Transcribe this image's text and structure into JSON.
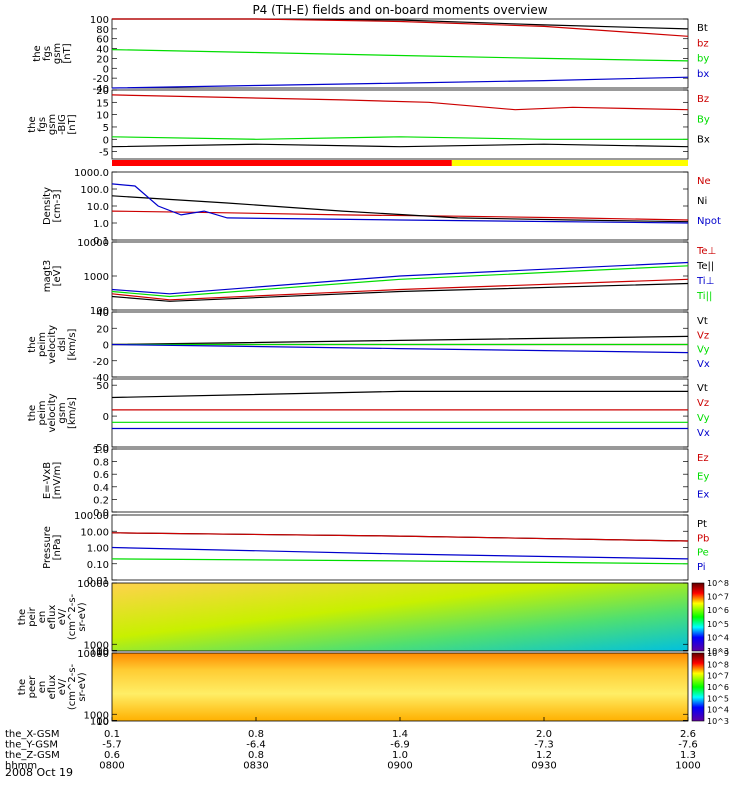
{
  "title": "P4 (TH-E) fields and on-board moments overview",
  "date": "2008 Oct 19",
  "x_axis": {
    "rows": [
      {
        "label": "the_X-GSM",
        "values": [
          "0.1",
          "0.8",
          "1.4",
          "2.0",
          "2.6"
        ]
      },
      {
        "label": "the_Y-GSM",
        "values": [
          "-5.7",
          "-6.4",
          "-6.9",
          "-7.3",
          "-7.6"
        ]
      },
      {
        "label": "the_Z-GSM",
        "values": [
          "0.6",
          "0.8",
          "1.0",
          "1.2",
          "1.3"
        ]
      },
      {
        "label": "hhmm",
        "values": [
          "0800",
          "0830",
          "0900",
          "0930",
          "1000"
        ]
      }
    ]
  },
  "colors": {
    "black": "#000000",
    "red": "#cc0000",
    "green": "#00dd00",
    "blue": "#0000cc",
    "yellow": "#ffff00"
  },
  "chart_data": [
    {
      "id": "fgs",
      "type": "line",
      "ylabel": [
        "the",
        "fgs",
        "gsm",
        "[nT]"
      ],
      "ylim": [
        -40,
        100
      ],
      "yticks": [
        "-40",
        "-20",
        "0",
        "20",
        "40",
        "60",
        "80",
        "100"
      ],
      "ytick_values": [
        -40,
        -20,
        0,
        20,
        40,
        60,
        80,
        100
      ],
      "series": [
        {
          "name": "Bt",
          "color": "#000000",
          "x": [
            0,
            0.25,
            0.5,
            0.75,
            1
          ],
          "y": [
            120,
            108,
            98,
            88,
            80
          ]
        },
        {
          "name": "bz",
          "color": "#cc0000",
          "x": [
            0,
            0.25,
            0.5,
            0.75,
            1
          ],
          "y": [
            115,
            105,
            95,
            85,
            65
          ]
        },
        {
          "name": "by",
          "color": "#00dd00",
          "x": [
            0,
            0.25,
            0.5,
            0.75,
            1
          ],
          "y": [
            38,
            32,
            26,
            20,
            15
          ]
        },
        {
          "name": "bx",
          "color": "#0000cc",
          "x": [
            0,
            0.25,
            0.5,
            0.75,
            1
          ],
          "y": [
            -40,
            -35,
            -30,
            -25,
            -18
          ]
        }
      ]
    },
    {
      "id": "fgs-dsl",
      "type": "line",
      "ylabel": [
        "the",
        "fgs",
        "gsm",
        "-BIG",
        "[nT]"
      ],
      "ylim": [
        -8,
        20
      ],
      "yticks": [
        "-5",
        "0",
        "5",
        "10",
        "15",
        "20"
      ],
      "ytick_values": [
        -5,
        0,
        5,
        10,
        15,
        20
      ],
      "series": [
        {
          "name": "Bz",
          "color": "#cc0000",
          "x": [
            0,
            0.2,
            0.4,
            0.55,
            0.7,
            0.8,
            1
          ],
          "y": [
            18,
            17,
            16,
            15,
            12,
            13,
            12
          ]
        },
        {
          "name": "By",
          "color": "#00dd00",
          "x": [
            0,
            0.25,
            0.5,
            0.75,
            1
          ],
          "y": [
            1,
            0,
            1,
            0,
            0
          ]
        },
        {
          "name": "Bx",
          "color": "#000000",
          "x": [
            0,
            0.25,
            0.5,
            0.75,
            1
          ],
          "y": [
            -3,
            -2,
            -3,
            -2,
            -3
          ]
        }
      ]
    },
    {
      "id": "density",
      "type": "line",
      "log": true,
      "ylabel": [
        "Density",
        "[cm-3]"
      ],
      "ylim": [
        0.1,
        1000
      ],
      "yticks": [
        "0.1",
        "1.0",
        "10.0",
        "100.0",
        "1000.0"
      ],
      "ytick_values": [
        0.1,
        1,
        10,
        100,
        1000
      ],
      "series": [
        {
          "name": "Ne",
          "color": "#cc0000",
          "x": [
            0,
            0.2,
            0.4,
            0.6,
            0.8,
            1
          ],
          "y": [
            5,
            4,
            3,
            2.5,
            2,
            1.5
          ]
        },
        {
          "name": "Ni",
          "color": "#000000",
          "x": [
            0,
            0.2,
            0.4,
            0.6,
            0.8,
            1
          ],
          "y": [
            40,
            15,
            5,
            2,
            1.5,
            1.2
          ]
        },
        {
          "name": "Npot",
          "color": "#0000cc",
          "x": [
            0,
            0.04,
            0.08,
            0.12,
            0.16,
            0.2,
            0.5,
            1
          ],
          "y": [
            200,
            150,
            10,
            3,
            5,
            2,
            1.5,
            1
          ]
        }
      ]
    },
    {
      "id": "temperature",
      "type": "line",
      "log": true,
      "ylabel": [
        "magt3",
        "[eV]"
      ],
      "ylim": [
        100,
        10000
      ],
      "yticks": [
        "100",
        "1000",
        "10000"
      ],
      "ytick_values": [
        100,
        1000,
        10000
      ],
      "series": [
        {
          "name": "Te⊥",
          "color": "#cc0000",
          "x": [
            0,
            0.1,
            0.5,
            1
          ],
          "y": [
            300,
            200,
            400,
            800
          ]
        },
        {
          "name": "Te||",
          "color": "#000000",
          "x": [
            0,
            0.1,
            0.5,
            1
          ],
          "y": [
            250,
            180,
            350,
            600
          ]
        },
        {
          "name": "Ti⊥",
          "color": "#0000cc",
          "x": [
            0,
            0.1,
            0.5,
            1
          ],
          "y": [
            400,
            300,
            1000,
            2500
          ]
        },
        {
          "name": "Ti||",
          "color": "#00dd00",
          "x": [
            0,
            0.1,
            0.5,
            1
          ],
          "y": [
            350,
            250,
            800,
            2000
          ]
        }
      ]
    },
    {
      "id": "velocity-dsl",
      "type": "line",
      "ylabel": [
        "the",
        "peim",
        "velocity",
        "dsl",
        "[km/s]"
      ],
      "ylim": [
        -40,
        40
      ],
      "yticks": [
        "-40",
        "-20",
        "0",
        "20",
        "40"
      ],
      "ytick_values": [
        -40,
        -20,
        0,
        20,
        40
      ],
      "series": [
        {
          "name": "Vt",
          "color": "#000000",
          "x": [
            0,
            0.5,
            1
          ],
          "y": [
            0,
            5,
            10
          ]
        },
        {
          "name": "Vz",
          "color": "#cc0000",
          "x": [
            0,
            0.5,
            1
          ],
          "y": [
            0,
            0,
            0
          ]
        },
        {
          "name": "Vy",
          "color": "#00dd00",
          "x": [
            0,
            0.5,
            1
          ],
          "y": [
            0,
            0,
            0
          ]
        },
        {
          "name": "Vx",
          "color": "#0000cc",
          "x": [
            0,
            0.5,
            1
          ],
          "y": [
            0,
            -5,
            -10
          ]
        }
      ]
    },
    {
      "id": "velocity-gsm",
      "type": "line",
      "ylabel": [
        "the",
        "peim",
        "velocity",
        "gsm",
        "[km/s]"
      ],
      "ylim": [
        -50,
        60
      ],
      "yticks": [
        "-50",
        "0",
        "50"
      ],
      "ytick_values": [
        -50,
        0,
        50
      ],
      "series": [
        {
          "name": "Vt",
          "color": "#000000",
          "x": [
            0,
            0.5,
            1
          ],
          "y": [
            30,
            40,
            40
          ]
        },
        {
          "name": "Vz",
          "color": "#cc0000",
          "x": [
            0,
            0.5,
            1
          ],
          "y": [
            10,
            10,
            10
          ]
        },
        {
          "name": "Vy",
          "color": "#00dd00",
          "x": [
            0,
            0.5,
            1
          ],
          "y": [
            -10,
            -10,
            -10
          ]
        },
        {
          "name": "Vx",
          "color": "#0000cc",
          "x": [
            0,
            0.5,
            1
          ],
          "y": [
            -20,
            -20,
            -20
          ]
        }
      ]
    },
    {
      "id": "efield",
      "type": "line",
      "ylabel": [
        "E=-VxB",
        "[mV/m]"
      ],
      "ylim": [
        0,
        1
      ],
      "yticks": [
        "0.0",
        "0.2",
        "0.4",
        "0.6",
        "0.8",
        "1.0"
      ],
      "ytick_values": [
        0,
        0.2,
        0.4,
        0.6,
        0.8,
        1.0
      ],
      "series": [
        {
          "name": "Ez",
          "color": "#cc0000",
          "x": [],
          "y": []
        },
        {
          "name": "Ey",
          "color": "#00dd00",
          "x": [],
          "y": []
        },
        {
          "name": "Ex",
          "color": "#0000cc",
          "x": [],
          "y": []
        }
      ]
    },
    {
      "id": "pressure",
      "type": "line",
      "log": true,
      "ylabel": [
        "Pressure",
        "[nPa]"
      ],
      "ylim": [
        0.01,
        100
      ],
      "yticks": [
        "0.01",
        "0.10",
        "1.00",
        "10.00",
        "100.00"
      ],
      "ytick_values": [
        0.01,
        0.1,
        1,
        10,
        100
      ],
      "series": [
        {
          "name": "Pt",
          "color": "#000000",
          "x": [
            0,
            0.5,
            1
          ],
          "y": [
            8,
            5,
            2.5
          ]
        },
        {
          "name": "Pb",
          "color": "#cc0000",
          "x": [
            0,
            0.5,
            1
          ],
          "y": [
            8,
            5,
            2.5
          ]
        },
        {
          "name": "Pe",
          "color": "#00dd00",
          "x": [
            0,
            0.5,
            1
          ],
          "y": [
            0.2,
            0.15,
            0.1
          ]
        },
        {
          "name": "Pi",
          "color": "#0000cc",
          "x": [
            0,
            0.5,
            1
          ],
          "y": [
            1,
            0.4,
            0.2
          ]
        }
      ]
    },
    {
      "id": "ion-spectrogram",
      "type": "heatmap",
      "ylabel": [
        "the",
        "peir",
        "en",
        "eflux",
        "eV/",
        "(cm^2-s-",
        "sr-eV)"
      ],
      "ylim": [
        10,
        10000
      ],
      "yticks": [
        "10",
        "100",
        "1000",
        "10000"
      ],
      "ytick_values": [
        10,
        100,
        1000,
        10000
      ],
      "colorbar_ticks": [
        "10^3",
        "10^4",
        "10^5",
        "10^6",
        "10^7",
        "10^8"
      ]
    },
    {
      "id": "electron-spectrogram",
      "type": "heatmap",
      "ylabel": [
        "the",
        "peer",
        "en",
        "eflux",
        "eV/",
        "(cm^2-s-",
        "sr-eV)"
      ],
      "ylim": [
        10,
        10000
      ],
      "yticks": [
        "10",
        "100",
        "1000",
        "10000"
      ],
      "ytick_values": [
        10,
        100,
        1000,
        10000
      ],
      "colorbar_ticks": [
        "10^3",
        "10^4",
        "10^5",
        "10^6",
        "10^7",
        "10^8",
        "10^9"
      ]
    }
  ]
}
